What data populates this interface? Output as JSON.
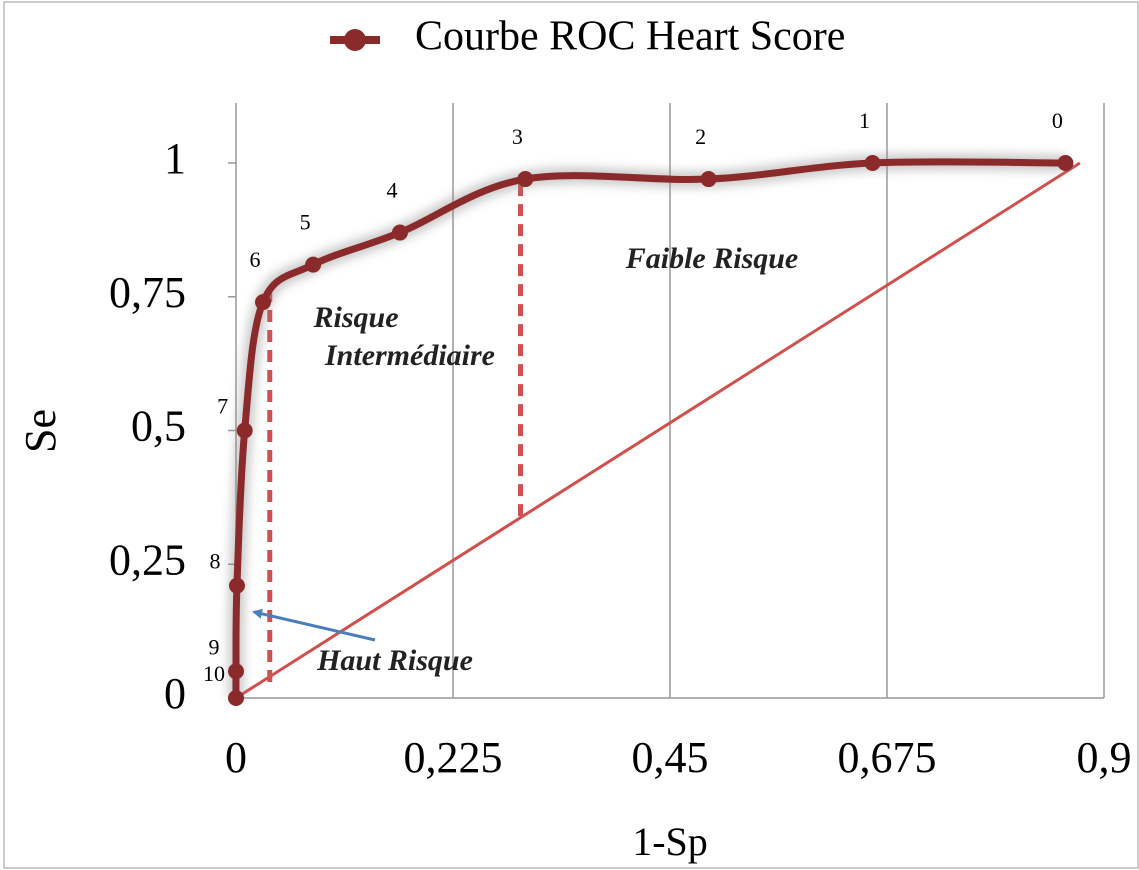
{
  "chart_data": {
    "type": "line",
    "x_label": "1-Sp",
    "y_label": "Se",
    "xlim": [
      0,
      0.9
    ],
    "ylim": [
      0,
      1
    ],
    "xticks": [
      0,
      {
        "value": 0.225,
        "label": "0,225"
      },
      {
        "value": 0.45,
        "label": "0,45"
      },
      {
        "value": 0.675,
        "label": "0,675"
      },
      {
        "value": 0.9,
        "label": "0,9"
      }
    ],
    "yticks": [
      0,
      {
        "value": 0.25,
        "label": "0,25"
      },
      {
        "value": 0.5,
        "label": "0,5"
      },
      {
        "value": 0.75,
        "label": "0,75"
      },
      1
    ],
    "grid": "x",
    "series": [
      {
        "name": "Courbe ROC Heart Score",
        "color": "#8b2a2a",
        "x": [
          0,
          0,
          0.001,
          0.009,
          0.028,
          0.08,
          0.17,
          0.3,
          0.49,
          0.66,
          0.86
        ],
        "values": [
          0,
          0.05,
          0.21,
          0.5,
          0.74,
          0.81,
          0.87,
          0.97,
          0.97,
          1,
          1
        ],
        "point_labels": [
          "10",
          "9",
          "8",
          "7",
          "6",
          "5",
          "4",
          "3",
          "2",
          "1",
          "0"
        ]
      }
    ],
    "diagonal": {
      "color": "#d0504d",
      "x": [
        0,
        0.875
      ],
      "y": [
        0,
        1
      ]
    },
    "thresholds": [
      {
        "x": 0.035,
        "y": [
          0.03,
          0.775
        ]
      },
      {
        "x": 0.295,
        "y": [
          0.34,
          0.97
        ]
      }
    ],
    "annotations": [
      "Faible Risque",
      "Risque",
      "Intermédiaire",
      "Haut Risque"
    ]
  }
}
